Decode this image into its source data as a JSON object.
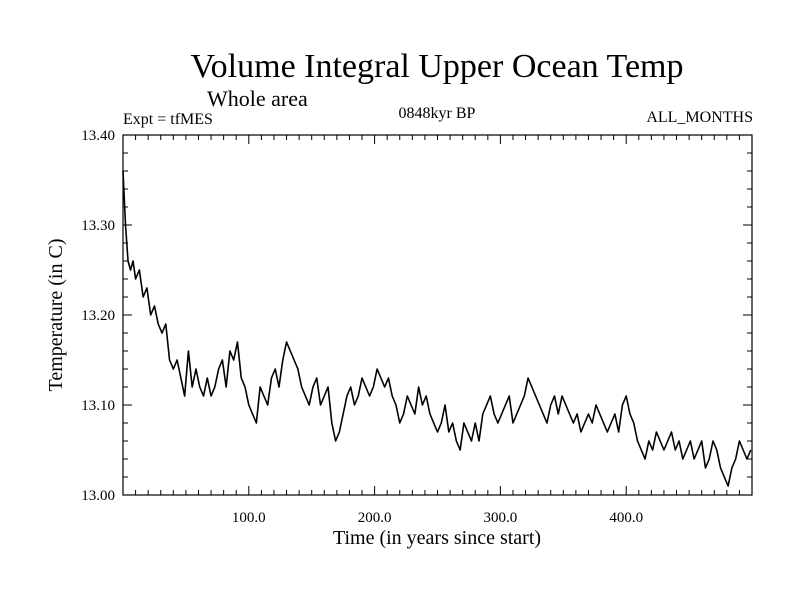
{
  "chart_data": {
    "type": "line",
    "title": "Volume Integral Upper Ocean Temp",
    "subtitle": "Whole area",
    "expt_label": "Expt = tfMES",
    "period_label": "0848kyr BP",
    "months_label": "ALL_MONTHS",
    "xlabel": "Time (in years since start)",
    "ylabel": "Temperature (in C)",
    "xlim": [
      0,
      500
    ],
    "ylim": [
      13.0,
      13.4
    ],
    "xticks": [
      100,
      200,
      300,
      400
    ],
    "xtick_labels": [
      "100.0",
      "200.0",
      "300.0",
      "400.0"
    ],
    "yticks": [
      13.0,
      13.1,
      13.2,
      13.3,
      13.4
    ],
    "ytick_labels": [
      "13.00",
      "13.10",
      "13.20",
      "13.30",
      "13.40"
    ],
    "series": [
      {
        "name": "Volume integral upper ocean temperature",
        "x": [
          0,
          1,
          2,
          3,
          4,
          6,
          8,
          10,
          13,
          16,
          19,
          22,
          25,
          28,
          31,
          34,
          37,
          40,
          43,
          46,
          49,
          52,
          55,
          58,
          61,
          64,
          67,
          70,
          73,
          76,
          79,
          82,
          85,
          88,
          91,
          94,
          97,
          100,
          103,
          106,
          109,
          112,
          115,
          118,
          121,
          124,
          127,
          130,
          133,
          136,
          139,
          142,
          145,
          148,
          151,
          154,
          157,
          160,
          163,
          166,
          169,
          172,
          175,
          178,
          181,
          184,
          187,
          190,
          193,
          196,
          199,
          202,
          205,
          208,
          211,
          214,
          217,
          220,
          223,
          226,
          229,
          232,
          235,
          238,
          241,
          244,
          247,
          250,
          253,
          256,
          259,
          262,
          265,
          268,
          271,
          274,
          277,
          280,
          283,
          286,
          289,
          292,
          295,
          298,
          301,
          304,
          307,
          310,
          313,
          316,
          319,
          322,
          325,
          328,
          331,
          334,
          337,
          340,
          343,
          346,
          349,
          352,
          355,
          358,
          361,
          364,
          367,
          370,
          373,
          376,
          379,
          382,
          385,
          388,
          391,
          394,
          397,
          400,
          403,
          406,
          409,
          412,
          415,
          418,
          421,
          424,
          427,
          430,
          433,
          436,
          439,
          442,
          445,
          448,
          451,
          454,
          457,
          460,
          463,
          466,
          469,
          472,
          475,
          478,
          481,
          484,
          487,
          490,
          493,
          496,
          499
        ],
        "y": [
          13.36,
          13.33,
          13.3,
          13.28,
          13.26,
          13.25,
          13.26,
          13.24,
          13.25,
          13.22,
          13.23,
          13.2,
          13.21,
          13.19,
          13.18,
          13.19,
          13.15,
          13.14,
          13.15,
          13.13,
          13.11,
          13.16,
          13.12,
          13.14,
          13.12,
          13.11,
          13.13,
          13.11,
          13.12,
          13.14,
          13.15,
          13.12,
          13.16,
          13.15,
          13.17,
          13.13,
          13.12,
          13.1,
          13.09,
          13.08,
          13.12,
          13.11,
          13.1,
          13.13,
          13.14,
          13.12,
          13.15,
          13.17,
          13.16,
          13.15,
          13.14,
          13.12,
          13.11,
          13.1,
          13.12,
          13.13,
          13.1,
          13.11,
          13.12,
          13.08,
          13.06,
          13.07,
          13.09,
          13.11,
          13.12,
          13.1,
          13.11,
          13.13,
          13.12,
          13.11,
          13.12,
          13.14,
          13.13,
          13.12,
          13.13,
          13.11,
          13.1,
          13.08,
          13.09,
          13.11,
          13.1,
          13.09,
          13.12,
          13.1,
          13.11,
          13.09,
          13.08,
          13.07,
          13.08,
          13.1,
          13.07,
          13.08,
          13.06,
          13.05,
          13.08,
          13.07,
          13.06,
          13.08,
          13.06,
          13.09,
          13.1,
          13.11,
          13.09,
          13.08,
          13.09,
          13.1,
          13.11,
          13.08,
          13.09,
          13.1,
          13.11,
          13.13,
          13.12,
          13.11,
          13.1,
          13.09,
          13.08,
          13.1,
          13.11,
          13.09,
          13.11,
          13.1,
          13.09,
          13.08,
          13.09,
          13.07,
          13.08,
          13.09,
          13.08,
          13.1,
          13.09,
          13.08,
          13.07,
          13.08,
          13.09,
          13.07,
          13.1,
          13.11,
          13.09,
          13.08,
          13.06,
          13.05,
          13.04,
          13.06,
          13.05,
          13.07,
          13.06,
          13.05,
          13.06,
          13.07,
          13.05,
          13.06,
          13.04,
          13.05,
          13.06,
          13.04,
          13.05,
          13.06,
          13.03,
          13.04,
          13.06,
          13.05,
          13.03,
          13.02,
          13.01,
          13.03,
          13.04,
          13.06,
          13.05,
          13.04,
          13.05
        ]
      }
    ]
  }
}
